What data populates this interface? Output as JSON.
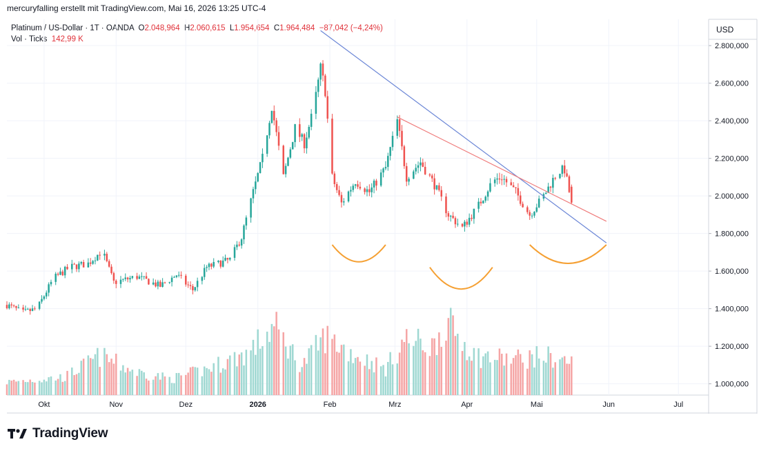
{
  "header": {
    "attribution": "mercuryfalling erstellt mit TradingView.com, Mai 16, 2026 13:25 UTC-4"
  },
  "legend": {
    "symbol": "Platinum / US-Dollar · 1T · OANDA",
    "open_label": "O",
    "open": "2.048,964",
    "high_label": "H",
    "high": "2.060,615",
    "low_label": "L",
    "low": "1.954,654",
    "close_label": "C",
    "close": "1.964,484",
    "change": "−87,042 (−4,24%)",
    "volume_label": "Vol · Ticks",
    "volume": "142,99 K"
  },
  "branding": {
    "logo_text": "TradingView"
  },
  "colors": {
    "up": "#26a69a",
    "down": "#ef5350",
    "vol_up": "#9fd8d2",
    "vol_down": "#f5a5a5",
    "trendline_blue": "#6b86d6",
    "trendline_red": "#ef7b7b",
    "arc": "#f5a033"
  },
  "chart_data": {
    "type": "candlestick",
    "currency_label": "USD",
    "price_axis": {
      "min": 940,
      "max": 2940,
      "ticks": [
        1000,
        1200,
        1400,
        1600,
        1800,
        2000,
        2200,
        2400,
        2600,
        2800
      ],
      "tick_labels": [
        "1.000,000",
        "1.200,000",
        "1.400,000",
        "1.600,000",
        "1.800,000",
        "2.000,000",
        "2.200,000",
        "2.400,000",
        "2.600,000",
        "2.800,000"
      ]
    },
    "time_axis": {
      "start": "2025-09-15",
      "end": "2026-07-14",
      "labels": [
        {
          "date": "2025-10-01",
          "text": "Okt",
          "bold": false
        },
        {
          "date": "2025-11-01",
          "text": "Nov",
          "bold": false
        },
        {
          "date": "2025-12-01",
          "text": "Dez",
          "bold": false
        },
        {
          "date": "2026-01-01",
          "text": "2026",
          "bold": true
        },
        {
          "date": "2026-02-01",
          "text": "Feb",
          "bold": false
        },
        {
          "date": "2026-03-01",
          "text": "Mrz",
          "bold": false
        },
        {
          "date": "2026-04-01",
          "text": "Apr",
          "bold": false
        },
        {
          "date": "2026-05-01",
          "text": "Mai",
          "bold": false
        },
        {
          "date": "2026-06-01",
          "text": "Jun",
          "bold": false
        },
        {
          "date": "2026-07-01",
          "text": "Jul",
          "bold": false
        }
      ]
    },
    "price_anchors": [
      {
        "date": "2025-09-15",
        "close": 1420
      },
      {
        "date": "2025-09-22",
        "close": 1380
      },
      {
        "date": "2025-09-28",
        "close": 1400
      },
      {
        "date": "2025-10-05",
        "close": 1560
      },
      {
        "date": "2025-10-12",
        "close": 1620
      },
      {
        "date": "2025-10-20",
        "close": 1640
      },
      {
        "date": "2025-10-26",
        "close": 1710
      },
      {
        "date": "2025-10-31",
        "close": 1540
      },
      {
        "date": "2025-11-10",
        "close": 1570
      },
      {
        "date": "2025-11-20",
        "close": 1520
      },
      {
        "date": "2025-11-27",
        "close": 1580
      },
      {
        "date": "2025-12-04",
        "close": 1500
      },
      {
        "date": "2025-12-10",
        "close": 1620
      },
      {
        "date": "2025-12-20",
        "close": 1660
      },
      {
        "date": "2025-12-25",
        "close": 1780
      },
      {
        "date": "2025-12-30",
        "close": 2020
      },
      {
        "date": "2026-01-03",
        "close": 2200
      },
      {
        "date": "2026-01-07",
        "close": 2480
      },
      {
        "date": "2026-01-12",
        "close": 2100
      },
      {
        "date": "2026-01-17",
        "close": 2360
      },
      {
        "date": "2026-01-21",
        "close": 2280
      },
      {
        "date": "2026-01-25",
        "close": 2460
      },
      {
        "date": "2026-01-28",
        "close": 2680
      },
      {
        "date": "2026-01-30",
        "close": 2560
      },
      {
        "date": "2026-02-02",
        "close": 2100
      },
      {
        "date": "2026-02-06",
        "close": 1960
      },
      {
        "date": "2026-02-12",
        "close": 2080
      },
      {
        "date": "2026-02-18",
        "close": 2020
      },
      {
        "date": "2026-02-25",
        "close": 2150
      },
      {
        "date": "2026-03-02",
        "close": 2400
      },
      {
        "date": "2026-03-06",
        "close": 2100
      },
      {
        "date": "2026-03-12",
        "close": 2180
      },
      {
        "date": "2026-03-18",
        "close": 2060
      },
      {
        "date": "2026-03-24",
        "close": 1900
      },
      {
        "date": "2026-03-30",
        "close": 1830
      },
      {
        "date": "2026-04-06",
        "close": 1950
      },
      {
        "date": "2026-04-12",
        "close": 2080
      },
      {
        "date": "2026-04-16",
        "close": 2100
      },
      {
        "date": "2026-04-22",
        "close": 2020
      },
      {
        "date": "2026-04-28",
        "close": 1900
      },
      {
        "date": "2026-05-04",
        "close": 2000
      },
      {
        "date": "2026-05-10",
        "close": 2130
      },
      {
        "date": "2026-05-13",
        "close": 2140
      },
      {
        "date": "2026-05-16",
        "close": 1964
      }
    ],
    "volume_note": "Volume bars in ticks (K)",
    "volume_anchors": [
      {
        "date": "2025-09-15",
        "vol": 40
      },
      {
        "date": "2025-10-10",
        "vol": 55
      },
      {
        "date": "2025-10-25",
        "vol": 120
      },
      {
        "date": "2025-11-10",
        "vol": 70
      },
      {
        "date": "2025-11-25",
        "vol": 50
      },
      {
        "date": "2025-12-10",
        "vol": 80
      },
      {
        "date": "2025-12-28",
        "vol": 130
      },
      {
        "date": "2026-01-08",
        "vol": 210
      },
      {
        "date": "2026-01-20",
        "vol": 90
      },
      {
        "date": "2026-01-30",
        "vol": 180
      },
      {
        "date": "2026-02-10",
        "vol": 130
      },
      {
        "date": "2026-02-25",
        "vol": 80
      },
      {
        "date": "2026-03-05",
        "vol": 170
      },
      {
        "date": "2026-03-18",
        "vol": 150
      },
      {
        "date": "2026-03-22",
        "vol": 230
      },
      {
        "date": "2026-04-05",
        "vol": 120
      },
      {
        "date": "2026-04-20",
        "vol": 110
      },
      {
        "date": "2026-05-05",
        "vol": 120
      },
      {
        "date": "2026-05-16",
        "vol": 100
      }
    ],
    "volume_max_ticks": 250,
    "drawings": [
      {
        "type": "trendline",
        "color": "blue",
        "from": {
          "date": "2026-01-28",
          "price": 2880
        },
        "to": {
          "date": "2026-05-31",
          "price": 1750
        }
      },
      {
        "type": "trendline",
        "color": "red",
        "from": {
          "date": "2026-03-02",
          "price": 2420
        },
        "to": {
          "date": "2026-05-31",
          "price": 1865
        }
      },
      {
        "type": "arc",
        "color": "orange",
        "from": {
          "date": "2026-02-02",
          "price": 1740
        },
        "to": {
          "date": "2026-02-25",
          "price": 1740
        },
        "depth": 55
      },
      {
        "type": "arc",
        "color": "orange",
        "from": {
          "date": "2026-03-16",
          "price": 1620
        },
        "to": {
          "date": "2026-04-12",
          "price": 1620
        },
        "depth": 70
      },
      {
        "type": "arc",
        "color": "orange",
        "from": {
          "date": "2026-04-28",
          "price": 1740
        },
        "to": {
          "date": "2026-05-31",
          "price": 1740
        },
        "depth": 60
      }
    ]
  }
}
